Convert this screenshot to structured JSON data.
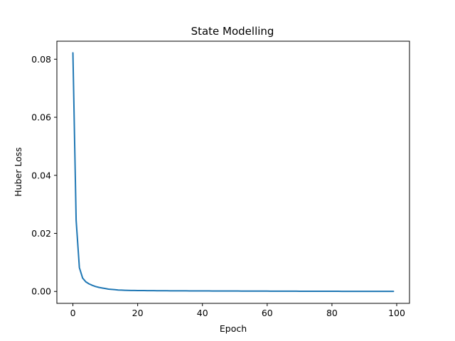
{
  "chart_data": {
    "type": "line",
    "title": "State Modelling",
    "xlabel": "Epoch",
    "ylabel": "Huber Loss",
    "xlim": [
      -4.95,
      103.95
    ],
    "ylim": [
      -0.0041,
      0.0862
    ],
    "xticks": [
      0,
      20,
      40,
      60,
      80,
      100
    ],
    "xtick_labels": [
      "0",
      "20",
      "40",
      "60",
      "80",
      "100"
    ],
    "yticks": [
      0.0,
      0.02,
      0.04,
      0.06,
      0.08
    ],
    "ytick_labels": [
      "0.00",
      "0.02",
      "0.04",
      "0.06",
      "0.08"
    ],
    "grid": false,
    "series": [
      {
        "color": "#1f77b4",
        "x": [
          0,
          1,
          2,
          3,
          4,
          5,
          6,
          7,
          8,
          9,
          10,
          11,
          12,
          13,
          14,
          15,
          16,
          17,
          18,
          19,
          20,
          21,
          22,
          23,
          24,
          25,
          26,
          27,
          28,
          29,
          30,
          31,
          32,
          33,
          34,
          35,
          36,
          37,
          38,
          39,
          40,
          41,
          42,
          43,
          44,
          45,
          46,
          47,
          48,
          49,
          50,
          51,
          52,
          53,
          54,
          55,
          56,
          57,
          58,
          59,
          60,
          61,
          62,
          63,
          64,
          65,
          66,
          67,
          68,
          69,
          70,
          71,
          72,
          73,
          74,
          75,
          76,
          77,
          78,
          79,
          80,
          81,
          82,
          83,
          84,
          85,
          86,
          87,
          88,
          89,
          90,
          91,
          92,
          93,
          94,
          95,
          96,
          97,
          98,
          99
        ],
        "y": [
          0.0822,
          0.0245,
          0.0082,
          0.0046,
          0.0033,
          0.0026,
          0.0021,
          0.0017,
          0.0014,
          0.0012,
          0.001,
          0.0008,
          0.0007,
          0.0006,
          0.0005,
          0.00045,
          0.0004,
          0.00037,
          0.00035,
          0.00033,
          0.00031,
          0.0003,
          0.00029,
          0.00028,
          0.00027,
          0.00026,
          0.00025,
          0.00024,
          0.00024,
          0.00023,
          0.00022,
          0.00022,
          0.00021,
          0.00021,
          0.0002,
          0.0002,
          0.00019,
          0.00019,
          0.00018,
          0.00018,
          0.00017,
          0.00017,
          0.00017,
          0.00016,
          0.00016,
          0.00016,
          0.00015,
          0.00015,
          0.00015,
          0.00014,
          0.00014,
          0.00014,
          0.00013,
          0.00013,
          0.00013,
          0.00012,
          0.00012,
          0.00012,
          0.00011,
          0.00011,
          0.00011,
          0.0001,
          0.0001,
          0.0001,
          0.0001,
          9e-05,
          9e-05,
          8e-05,
          8e-05,
          8e-05,
          7e-05,
          7e-05,
          7e-05,
          7e-05,
          6e-05,
          6e-05,
          6e-05,
          6e-05,
          5e-05,
          5e-05,
          5e-05,
          5e-05,
          5e-05,
          4e-05,
          4e-05,
          4e-05,
          4e-05,
          4e-05,
          4e-05,
          3e-05,
          3e-05,
          3e-05,
          3e-05,
          3e-05,
          3e-05,
          3e-05,
          3e-05,
          3e-05,
          3e-05,
          3e-05
        ]
      }
    ]
  }
}
